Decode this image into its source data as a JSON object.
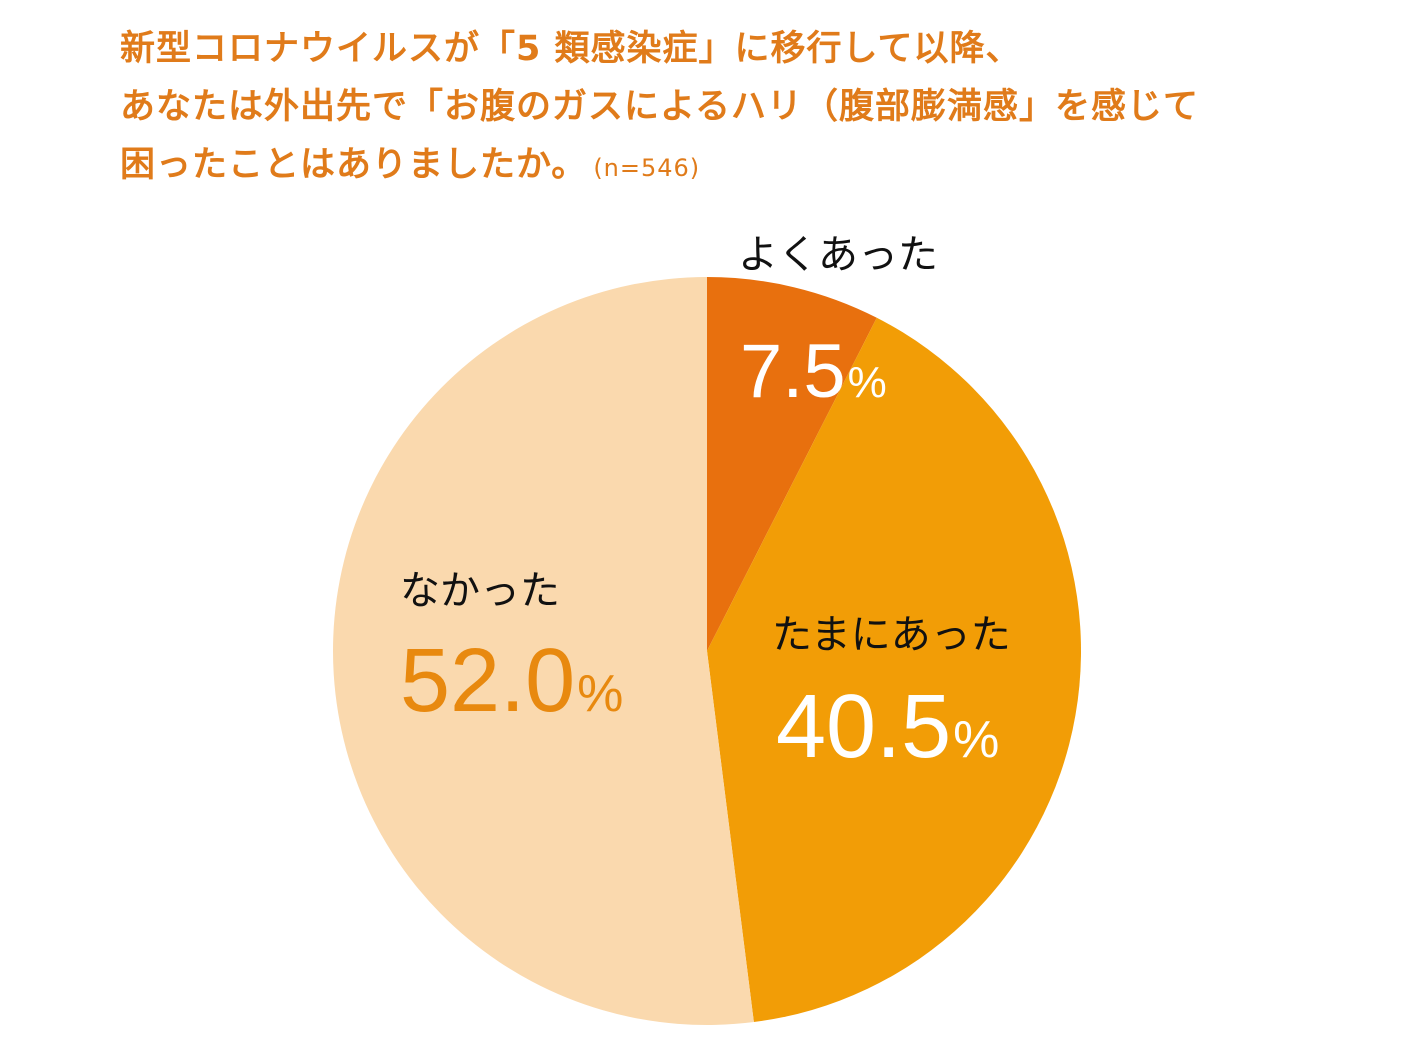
{
  "title": {
    "line1": "新型コロナウイルスが「5 類感染症」に移行して以降、",
    "line2": "あなたは外出先で「お腹のガスによるハリ（腹部膨満感」を感じて",
    "line3": "困ったことはありましたか。",
    "n": "(n=546)"
  },
  "chart_data": {
    "type": "pie",
    "start_angle_deg": 0,
    "direction": "clockwise",
    "slices": [
      {
        "label": "よくあった",
        "value": 7.5,
        "value_text": "7.5",
        "unit": "%",
        "color": "#e8700e",
        "label_color": "#111111",
        "value_color": "#ffffff"
      },
      {
        "label": "たまにあった",
        "value": 40.5,
        "value_text": "40.5",
        "unit": "%",
        "color": "#f29d06",
        "label_color": "#111111",
        "value_color": "#ffffff"
      },
      {
        "label": "なかった",
        "value": 52.0,
        "value_text": "52.0",
        "unit": "%",
        "color": "#fad9ae",
        "label_color": "#111111",
        "value_color": "#e8890f"
      }
    ]
  }
}
